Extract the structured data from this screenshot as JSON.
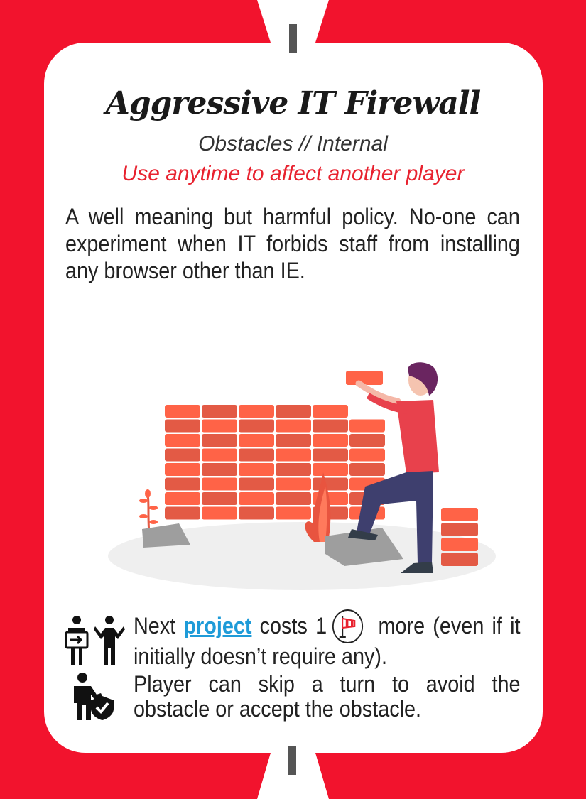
{
  "card": {
    "title": "Aggressive IT Firewall",
    "category": "Obstacles // Internal",
    "usage": "Use anytime to affect another player",
    "description": "A well meaning but harmful policy. No-one can experiment when IT forbids staff from installing any browser other than IE."
  },
  "effects": [
    {
      "icon": "people-exchange-icon",
      "prefix": "Next ",
      "link_text": "project",
      "middle": " costs ",
      "cost": "1",
      "cost_icon": "windsock-icon",
      "suffix": " more (even if it initially doesn’t require any)."
    },
    {
      "icon": "person-shield-icon",
      "text": "Player can skip a turn to avoid the obstacle or accept the obstacle."
    }
  ],
  "colors": {
    "frame": "#f2132d",
    "usage_text": "#e8222f",
    "link": "#1e9bd8",
    "brick_light": "#ff6347",
    "brick_dark": "#e35a45"
  }
}
